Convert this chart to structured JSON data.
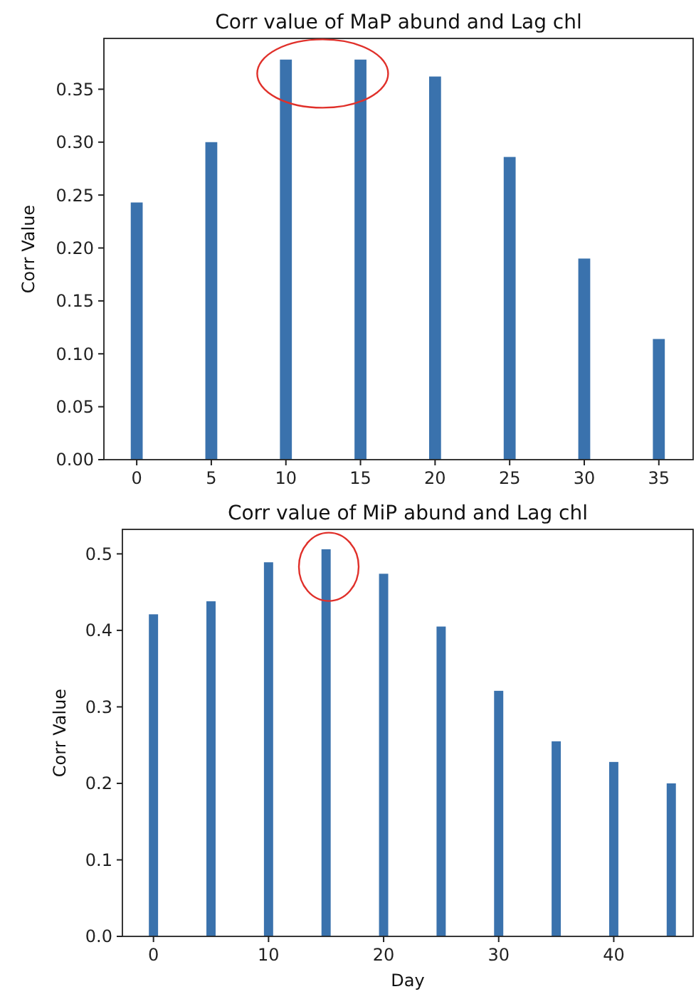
{
  "chart_data": [
    {
      "type": "bar",
      "title": "Corr value of MaP abund and Lag chl",
      "ylabel": "Corr Value",
      "x": [
        0,
        5,
        10,
        15,
        20,
        25,
        30,
        35
      ],
      "series": [
        {
          "color": "#3a72ad",
          "values": [
            0.243,
            0.3,
            0.378,
            0.378,
            0.362,
            0.286,
            0.19,
            0.114
          ]
        }
      ],
      "xlim": [
        -2.2,
        37.3
      ],
      "xticks": [
        0,
        5,
        10,
        15,
        20,
        25,
        30,
        35
      ],
      "ylim": [
        0,
        0.398
      ],
      "yticks": [
        {
          "value": 0,
          "label": "0.00"
        },
        {
          "value": 0.05,
          "label": "0.05"
        },
        {
          "value": 0.1,
          "label": "0.10"
        },
        {
          "value": 0.15,
          "label": "0.15"
        },
        {
          "value": 0.2,
          "label": "0.20"
        },
        {
          "value": 0.25,
          "label": "0.25"
        },
        {
          "value": 0.3,
          "label": "0.30"
        },
        {
          "value": 0.35,
          "label": "0.35"
        }
      ],
      "grid": false
    },
    {
      "type": "bar",
      "title": "Corr value of MiP abund and Lag chl",
      "xlabel": "Day",
      "ylabel": "Corr Value",
      "x": [
        0,
        5,
        10,
        15,
        20,
        25,
        30,
        35,
        40,
        45
      ],
      "series": [
        {
          "color": "#3a72ad",
          "values": [
            0.421,
            0.438,
            0.489,
            0.506,
            0.474,
            0.405,
            0.321,
            0.255,
            0.228,
            0.2
          ]
        }
      ],
      "xlim": [
        -2.7,
        46.9
      ],
      "xticks": [
        0,
        10,
        20,
        30,
        40
      ],
      "ylim": [
        0,
        0.532
      ],
      "yticks": [
        {
          "value": 0,
          "label": "0.0"
        },
        {
          "value": 0.1,
          "label": "0.1"
        },
        {
          "value": 0.2,
          "label": "0.2"
        },
        {
          "value": 0.3,
          "label": "0.3"
        },
        {
          "value": 0.4,
          "label": "0.4"
        },
        {
          "value": 0.5,
          "label": "0.5"
        }
      ],
      "grid": false
    }
  ]
}
